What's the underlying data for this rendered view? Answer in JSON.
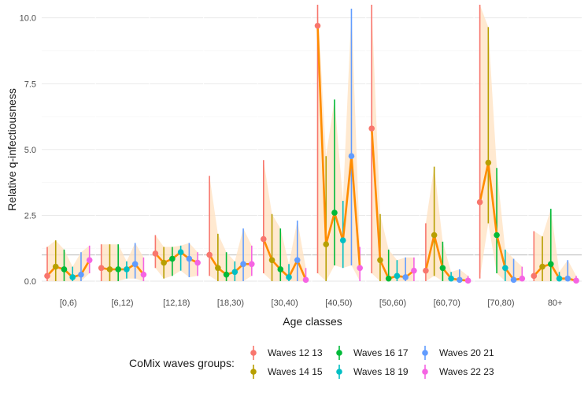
{
  "chart_data": {
    "type": "line",
    "ylabel": "Relative q-infectiousness",
    "xlabel": "Age classes",
    "ylim": [
      0,
      10.5
    ],
    "yticks": [
      0.0,
      2.5,
      5.0,
      7.5,
      10.0
    ],
    "ytick_labels": [
      "0.0",
      "2.5",
      "5.0",
      "7.5",
      "10.0"
    ],
    "reference_line": 1,
    "grid": true,
    "categories": [
      "[0,6)",
      "[6,12)",
      "[12,18)",
      "[18,30)",
      "[30,40)",
      "[40,50)",
      "[50,60)",
      "[60,70)",
      "[70,80)",
      "80+"
    ],
    "legend": {
      "title": "CoMix waves groups:",
      "position": "bottom"
    },
    "series": [
      {
        "name": "Waves 12 13",
        "color": "#F8766D",
        "values": [
          0.2,
          0.5,
          1.05,
          1.0,
          1.6,
          9.7,
          5.8,
          0.4,
          3.0,
          0.2
        ],
        "lower": [
          0.0,
          0.0,
          0.5,
          0.2,
          0.3,
          0.3,
          0.3,
          0.0,
          0.1,
          0.0
        ],
        "upper": [
          1.3,
          1.4,
          1.75,
          4.0,
          4.6,
          10.5,
          10.5,
          2.2,
          10.5,
          1.9
        ]
      },
      {
        "name": "Waves 14 15",
        "color": "#B79F00",
        "values": [
          0.55,
          0.45,
          0.7,
          0.5,
          0.8,
          1.4,
          0.8,
          1.75,
          4.5,
          0.55
        ],
        "lower": [
          0.0,
          0.0,
          0.1,
          0.0,
          0.0,
          0.0,
          0.0,
          0.2,
          2.2,
          0.0
        ],
        "upper": [
          1.55,
          1.4,
          1.3,
          1.8,
          2.55,
          4.75,
          2.55,
          4.35,
          9.65,
          1.7
        ]
      },
      {
        "name": "Waves 16 17",
        "color": "#00BA38",
        "values": [
          0.45,
          0.45,
          0.85,
          0.25,
          0.45,
          2.6,
          0.1,
          0.5,
          1.75,
          0.65
        ],
        "lower": [
          0.0,
          0.0,
          0.2,
          0.0,
          0.0,
          0.6,
          0.0,
          0.0,
          0.3,
          0.0
        ],
        "upper": [
          1.2,
          1.4,
          1.3,
          1.1,
          2.0,
          6.9,
          1.2,
          1.5,
          4.3,
          2.75
        ]
      },
      {
        "name": "Waves 18 19",
        "color": "#00BFC4",
        "values": [
          0.15,
          0.45,
          1.1,
          0.35,
          0.15,
          1.55,
          0.2,
          0.1,
          0.5,
          0.1
        ],
        "lower": [
          0.0,
          0.1,
          0.4,
          0.0,
          0.0,
          0.5,
          0.0,
          0.0,
          0.0,
          0.0
        ],
        "upper": [
          0.55,
          0.75,
          1.35,
          0.75,
          0.65,
          3.05,
          0.8,
          0.35,
          1.2,
          0.35
        ]
      },
      {
        "name": "Waves 20 21",
        "color": "#619CFF",
        "values": [
          0.25,
          0.65,
          0.85,
          0.65,
          0.8,
          4.75,
          0.15,
          0.05,
          0.05,
          0.1
        ],
        "lower": [
          0.0,
          0.1,
          0.15,
          0.0,
          0.0,
          0.6,
          0.0,
          0.0,
          0.0,
          0.0
        ],
        "upper": [
          1.1,
          1.45,
          1.45,
          2.0,
          2.3,
          10.35,
          0.9,
          0.45,
          0.85,
          0.8
        ]
      },
      {
        "name": "Waves 22 23",
        "color": "#F564E3",
        "values": [
          0.8,
          0.25,
          0.7,
          0.65,
          0.05,
          0.5,
          0.4,
          0.02,
          0.1,
          0.02
        ],
        "lower": [
          0.3,
          0.0,
          0.2,
          0.2,
          0.0,
          0.0,
          0.0,
          0.0,
          0.0,
          0.0
        ],
        "upper": [
          1.35,
          0.9,
          1.1,
          1.35,
          0.5,
          1.3,
          0.9,
          0.2,
          0.55,
          0.2
        ]
      }
    ],
    "trend_color": "#FF8C00",
    "ribbon_color": "#FFE4C4"
  }
}
